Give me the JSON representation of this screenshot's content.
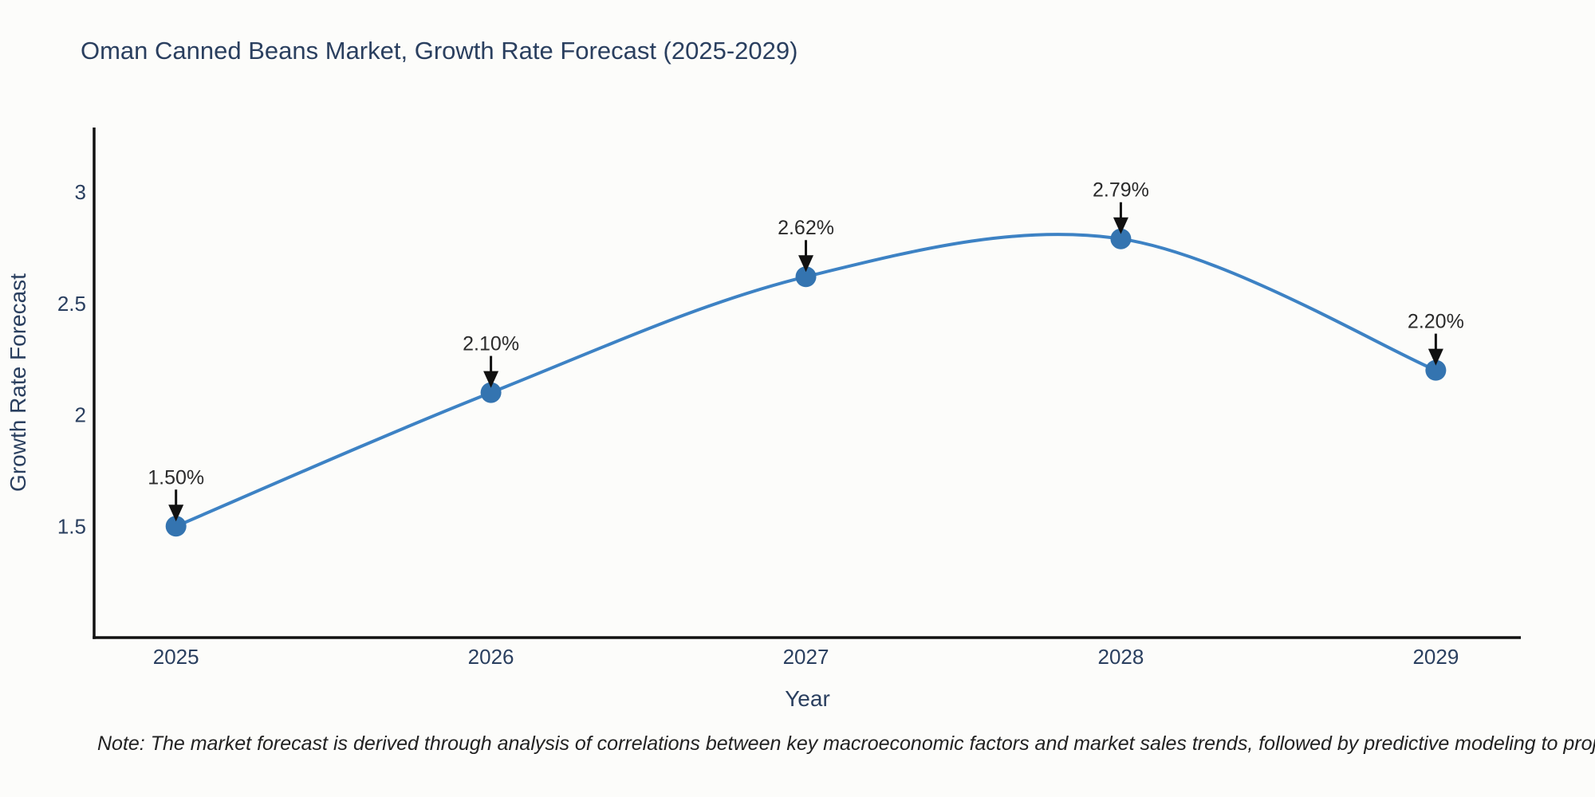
{
  "title": "Oman Canned Beans Market, Growth Rate Forecast (2025-2029)",
  "note": "Note: The market forecast is derived through analysis of correlations between key macroeconomic factors and market sales trends, followed by predictive modeling to project future sales",
  "chart_data": {
    "type": "line",
    "title": "Oman Canned Beans Market, Growth Rate Forecast (2025-2029)",
    "x": [
      2025,
      2026,
      2027,
      2028,
      2029
    ],
    "series": [
      {
        "name": "Growth Rate Forecast",
        "values": [
          1.5,
          2.1,
          2.62,
          2.79,
          2.2
        ]
      }
    ],
    "point_labels": [
      "1.50%",
      "2.10%",
      "2.62%",
      "2.79%",
      "2.20%"
    ],
    "xlabel": "Year",
    "ylabel": "Growth Rate Forecast",
    "xlim": [
      2024.74,
      2029.27
    ],
    "ylim": [
      1.0,
      3.29
    ],
    "xticks": [
      2025,
      2026,
      2027,
      2028,
      2029
    ],
    "yticks": [
      1.5,
      2,
      2.5,
      3
    ],
    "grid": false,
    "legend": false,
    "line_shape": "spline",
    "colors": {
      "line": "#3d82c4",
      "marker": "#3474b0",
      "axis": "#111111",
      "arrow": "#111111",
      "text": "#2a3f5f",
      "annotation": "#2b2b2b"
    }
  }
}
